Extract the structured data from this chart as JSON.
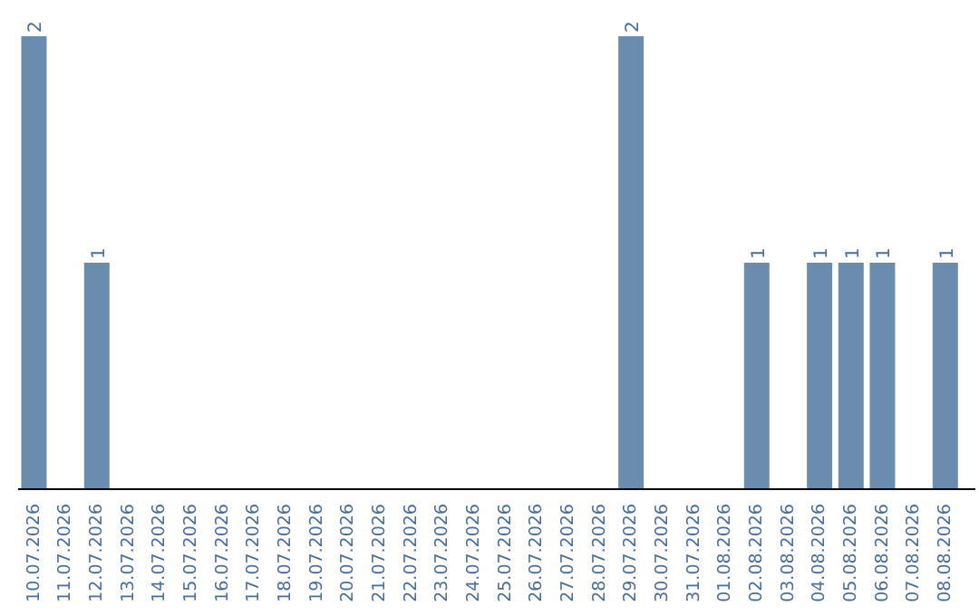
{
  "chart_data": {
    "type": "bar",
    "categories": [
      "10.07.2026",
      "11.07.2026",
      "12.07.2026",
      "13.07.2026",
      "14.07.2026",
      "15.07.2026",
      "16.07.2026",
      "17.07.2026",
      "18.07.2026",
      "19.07.2026",
      "20.07.2026",
      "21.07.2026",
      "22.07.2026",
      "23.07.2026",
      "24.07.2026",
      "25.07.2026",
      "26.07.2026",
      "27.07.2026",
      "28.07.2026",
      "29.07.2026",
      "30.07.2026",
      "31.07.2026",
      "01.08.2026",
      "02.08.2026",
      "03.08.2026",
      "04.08.2026",
      "05.08.2026",
      "06.08.2026",
      "07.08.2026",
      "08.08.2026"
    ],
    "values": [
      2,
      0,
      1,
      0,
      0,
      0,
      0,
      0,
      0,
      0,
      0,
      0,
      0,
      0,
      0,
      0,
      0,
      0,
      0,
      2,
      0,
      0,
      0,
      1,
      0,
      1,
      1,
      1,
      0,
      1
    ],
    "value_labels": [
      "2",
      null,
      "1",
      null,
      null,
      null,
      null,
      null,
      null,
      null,
      null,
      null,
      null,
      null,
      null,
      null,
      null,
      null,
      null,
      "2",
      null,
      null,
      null,
      "1",
      null,
      "1",
      "1",
      "1",
      null,
      "1"
    ],
    "color": "#6a8cad",
    "tick_labels": "x",
    "grid": false,
    "legend": false
  }
}
